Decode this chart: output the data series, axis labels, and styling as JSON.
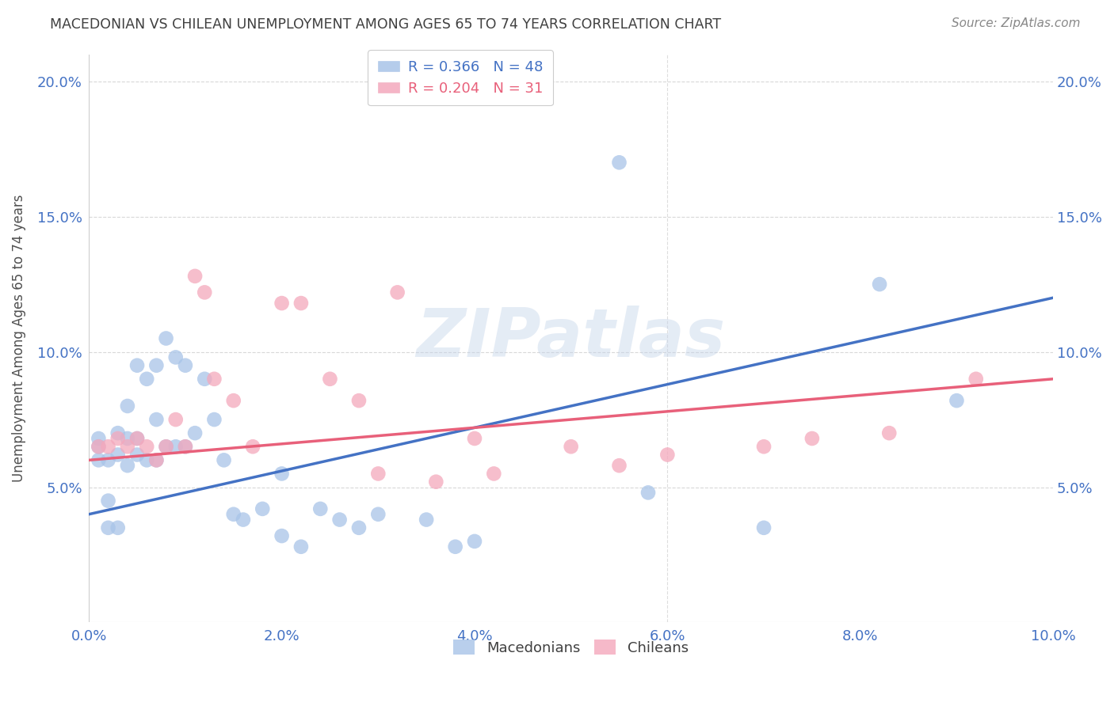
{
  "title": "MACEDONIAN VS CHILEAN UNEMPLOYMENT AMONG AGES 65 TO 74 YEARS CORRELATION CHART",
  "source": "Source: ZipAtlas.com",
  "ylabel": "Unemployment Among Ages 65 to 74 years",
  "watermark": "ZIPatlas",
  "xlim": [
    0.0,
    0.1
  ],
  "ylim": [
    0.0,
    0.21
  ],
  "xticks": [
    0.0,
    0.02,
    0.04,
    0.06,
    0.08,
    0.1
  ],
  "yticks": [
    0.05,
    0.1,
    0.15,
    0.2
  ],
  "xtick_labels": [
    "0.0%",
    "2.0%",
    "4.0%",
    "6.0%",
    "8.0%",
    "10.0%"
  ],
  "ytick_labels": [
    "5.0%",
    "10.0%",
    "15.0%",
    "20.0%"
  ],
  "mac_color": "#a8c4e8",
  "chi_color": "#f4a8bc",
  "mac_line_color": "#4472c4",
  "chi_line_color": "#e8607a",
  "background_color": "#ffffff",
  "grid_color": "#d8d8d8",
  "axis_label_color": "#4472c4",
  "title_color": "#404040",
  "legend_r_mac": "0.366",
  "legend_n_mac": "48",
  "legend_r_chi": "0.204",
  "legend_n_chi": "31",
  "mac_scatter_x": [
    0.001,
    0.001,
    0.001,
    0.002,
    0.002,
    0.002,
    0.003,
    0.003,
    0.003,
    0.004,
    0.004,
    0.004,
    0.005,
    0.005,
    0.005,
    0.006,
    0.006,
    0.007,
    0.007,
    0.007,
    0.008,
    0.008,
    0.009,
    0.009,
    0.01,
    0.01,
    0.011,
    0.012,
    0.013,
    0.014,
    0.015,
    0.016,
    0.018,
    0.02,
    0.02,
    0.022,
    0.024,
    0.026,
    0.028,
    0.03,
    0.035,
    0.038,
    0.04,
    0.055,
    0.058,
    0.07,
    0.082,
    0.09
  ],
  "mac_scatter_y": [
    0.06,
    0.065,
    0.068,
    0.035,
    0.045,
    0.06,
    0.035,
    0.062,
    0.07,
    0.058,
    0.068,
    0.08,
    0.062,
    0.068,
    0.095,
    0.06,
    0.09,
    0.06,
    0.075,
    0.095,
    0.065,
    0.105,
    0.065,
    0.098,
    0.065,
    0.095,
    0.07,
    0.09,
    0.075,
    0.06,
    0.04,
    0.038,
    0.042,
    0.032,
    0.055,
    0.028,
    0.042,
    0.038,
    0.035,
    0.04,
    0.038,
    0.028,
    0.03,
    0.17,
    0.048,
    0.035,
    0.125,
    0.082
  ],
  "chi_scatter_x": [
    0.001,
    0.002,
    0.003,
    0.004,
    0.005,
    0.006,
    0.007,
    0.008,
    0.009,
    0.01,
    0.011,
    0.012,
    0.013,
    0.015,
    0.017,
    0.02,
    0.022,
    0.025,
    0.028,
    0.03,
    0.032,
    0.036,
    0.04,
    0.042,
    0.05,
    0.055,
    0.06,
    0.07,
    0.075,
    0.083,
    0.092
  ],
  "chi_scatter_y": [
    0.065,
    0.065,
    0.068,
    0.065,
    0.068,
    0.065,
    0.06,
    0.065,
    0.075,
    0.065,
    0.128,
    0.122,
    0.09,
    0.082,
    0.065,
    0.118,
    0.118,
    0.09,
    0.082,
    0.055,
    0.122,
    0.052,
    0.068,
    0.055,
    0.065,
    0.058,
    0.062,
    0.065,
    0.068,
    0.07,
    0.09
  ]
}
